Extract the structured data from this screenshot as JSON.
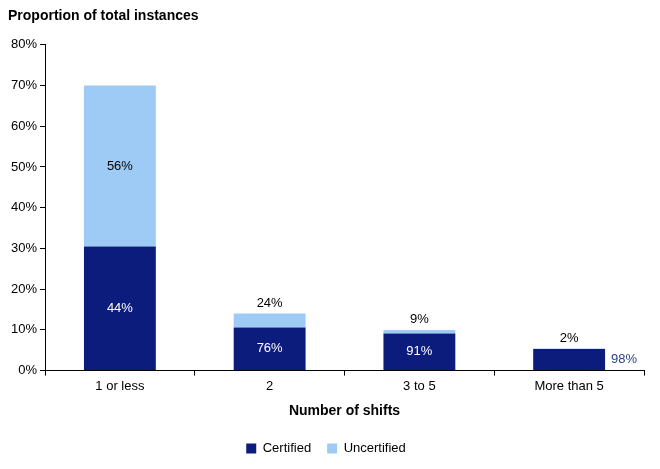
{
  "chart_data": {
    "type": "bar",
    "title": "Proportion of total instances",
    "x_label": "Number of shifts",
    "categories": [
      "1 or less",
      "2",
      "3 to 5",
      "More than 5"
    ],
    "series": [
      {
        "name": "Certified",
        "color": "#0c1c7c",
        "values": [
          30.5,
          10.6,
          9.1,
          5.3
        ],
        "segment_labels": [
          "44%",
          "76%",
          "91%",
          "98%"
        ]
      },
      {
        "name": "Uncertified",
        "color": "#9dcbf5",
        "values": [
          39.5,
          3.4,
          0.9,
          0.1
        ],
        "segment_labels": [
          "56%",
          "24%",
          "9%",
          "2%"
        ]
      }
    ],
    "ylim": [
      0,
      80
    ],
    "yticks": [
      {
        "value": 0,
        "label": "0%"
      },
      {
        "value": 10,
        "label": "10%"
      },
      {
        "value": 20,
        "label": "20%"
      },
      {
        "value": 30,
        "label": "30%"
      },
      {
        "value": 40,
        "label": "40%"
      },
      {
        "value": 50,
        "label": "50%"
      },
      {
        "value": 60,
        "label": "60%"
      },
      {
        "value": 70,
        "label": "70%"
      },
      {
        "value": 80,
        "label": "80%"
      }
    ],
    "stacked": true,
    "grid": false,
    "legend": "bottom"
  }
}
